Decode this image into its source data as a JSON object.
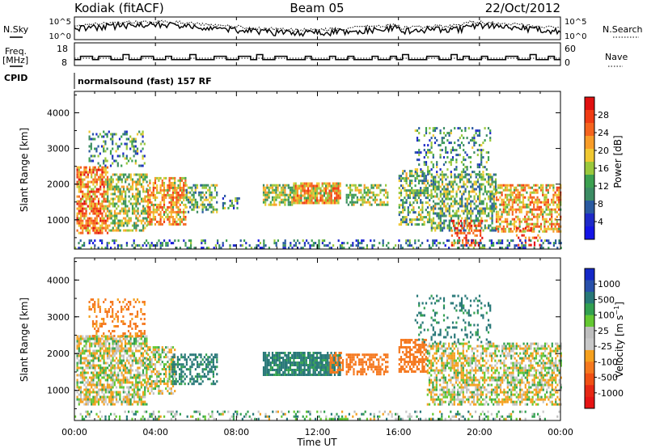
{
  "header": {
    "station": "Kodiak (fitACF)",
    "beam": "Beam 05",
    "date": "22/Oct/2012",
    "cpid_label": "CPID",
    "cpid_value": "normalsound (fast) 157 RF"
  },
  "noise_panel": {
    "left_label": "N.Sky",
    "right_label": "N.Search",
    "left_ticks": [
      "10^5",
      "10^0"
    ],
    "right_ticks": [
      "10^5",
      "10^0"
    ]
  },
  "freq_panel": {
    "left_label": "Freq.",
    "left_unit": "[MHz]",
    "right_label": "Nave",
    "left_ticks": [
      18,
      8
    ],
    "right_ticks": [
      60,
      0
    ],
    "freq_steps": [
      10,
      12,
      12,
      10,
      12,
      12,
      10,
      10,
      13,
      10,
      10,
      12,
      12,
      10,
      10,
      12,
      10,
      10,
      10,
      13,
      10,
      10,
      10,
      12,
      12,
      10,
      10,
      12,
      12,
      10,
      13,
      10,
      10,
      12,
      12,
      10,
      10,
      10,
      12,
      10,
      10,
      10,
      12,
      10,
      10,
      12,
      10,
      10,
      10,
      12,
      10,
      10,
      12,
      10,
      13,
      10,
      10,
      10,
      12,
      12,
      10,
      10,
      13,
      10,
      12,
      10,
      10,
      12,
      10,
      10,
      10,
      12,
      12,
      10,
      10,
      13,
      10,
      10,
      12,
      10
    ]
  },
  "chart_data": [
    {
      "type": "heatmap",
      "title": "Power",
      "xlabel": "Time UT",
      "ylabel": "Slant Range [km]",
      "colorbar_label": "Power [dB]",
      "x_ticks": [
        "00:00",
        "04:00",
        "08:00",
        "12:00",
        "16:00",
        "20:00",
        "00:00"
      ],
      "x_range_hours": [
        0,
        24
      ],
      "y_range_km": [
        180,
        4600
      ],
      "y_ticks": [
        1000,
        2000,
        3000,
        4000
      ],
      "colorbar_ticks": [
        "28",
        "24",
        "20",
        "16",
        "12",
        "8",
        "4"
      ],
      "colorbar_colors": [
        "#e01010",
        "#f03c14",
        "#f5641e",
        "#f89c28",
        "#f0c832",
        "#9ac83c",
        "#3ca050",
        "#3c8c64",
        "#2a5aa0",
        "#1e2ac8",
        "#1414e6"
      ],
      "regions": [
        {
          "t0": 0.1,
          "t1": 1.6,
          "r0": 600,
          "r1": 2500,
          "val": 22,
          "density": 0.72
        },
        {
          "t0": 1.6,
          "t1": 3.6,
          "r0": 700,
          "r1": 2300,
          "val": 16,
          "density": 0.6
        },
        {
          "t0": 0.7,
          "t1": 3.5,
          "r0": 2500,
          "r1": 3500,
          "val": 12,
          "density": 0.3
        },
        {
          "t0": 3.6,
          "t1": 5.5,
          "r0": 900,
          "r1": 2200,
          "val": 20,
          "density": 0.65
        },
        {
          "t0": 5.5,
          "t1": 7.0,
          "r0": 1200,
          "r1": 2000,
          "val": 14,
          "density": 0.55
        },
        {
          "t0": 7.3,
          "t1": 8.2,
          "r0": 1350,
          "r1": 1700,
          "val": 12,
          "density": 0.3
        },
        {
          "t0": 9.3,
          "t1": 10.8,
          "r0": 1450,
          "r1": 2000,
          "val": 16,
          "density": 0.75
        },
        {
          "t0": 10.8,
          "t1": 13.1,
          "r0": 1450,
          "r1": 2050,
          "val": 20,
          "density": 0.85
        },
        {
          "t0": 13.4,
          "t1": 15.5,
          "r0": 1450,
          "r1": 2000,
          "val": 16,
          "density": 0.55
        },
        {
          "t0": 16.0,
          "t1": 17.6,
          "r0": 900,
          "r1": 2400,
          "val": 14,
          "density": 0.55
        },
        {
          "t0": 17.6,
          "t1": 20.8,
          "r0": 700,
          "r1": 2300,
          "val": 14,
          "density": 0.55
        },
        {
          "t0": 18.6,
          "t1": 20.1,
          "r0": 300,
          "r1": 1000,
          "val": 26,
          "density": 0.4
        },
        {
          "t0": 20.8,
          "t1": 24.0,
          "r0": 700,
          "r1": 2000,
          "val": 20,
          "density": 0.6
        },
        {
          "t0": 21.8,
          "t1": 23.0,
          "r0": 300,
          "r1": 800,
          "val": 26,
          "density": 0.3
        },
        {
          "t0": 16.8,
          "t1": 20.5,
          "r0": 2300,
          "r1": 3600,
          "val": 12,
          "density": 0.25
        },
        {
          "t0": 0.0,
          "t1": 24.0,
          "r0": 200,
          "r1": 450,
          "val": 10,
          "density": 0.3
        }
      ]
    },
    {
      "type": "heatmap",
      "title": "Velocity",
      "xlabel": "Time UT",
      "ylabel": "Slant Range [km]",
      "colorbar_label": "Velocity [m s^-1]",
      "x_ticks": [
        "00:00",
        "04:00",
        "08:00",
        "12:00",
        "16:00",
        "20:00",
        "00:00"
      ],
      "x_range_hours": [
        0,
        24
      ],
      "y_range_km": [
        180,
        4600
      ],
      "y_ticks": [
        1000,
        2000,
        3000,
        4000
      ],
      "colorbar_ticks": [
        "1000",
        "500",
        "100",
        "25",
        "-25",
        "-100",
        "-500",
        "-1000"
      ],
      "colorbar_colors": [
        "#1428c8",
        "#2850aa",
        "#287878",
        "#32a050",
        "#64c832",
        "#bebebe",
        "#c8c8c8",
        "#f5a01e",
        "#f5781e",
        "#f05014",
        "#e62814",
        "#e61414"
      ],
      "regions": [
        {
          "t0": 0.1,
          "t1": 3.6,
          "r0": 600,
          "r1": 2500,
          "val": 0,
          "density": 0.7
        },
        {
          "t0": 0.7,
          "t1": 3.5,
          "r0": 2500,
          "r1": 3500,
          "val": -150,
          "density": 0.3
        },
        {
          "t0": 3.6,
          "t1": 5.0,
          "r0": 900,
          "r1": 2200,
          "val": 0,
          "density": 0.6
        },
        {
          "t0": 4.8,
          "t1": 7.0,
          "r0": 1200,
          "r1": 2000,
          "val": 150,
          "density": 0.5
        },
        {
          "t0": 9.3,
          "t1": 13.1,
          "r0": 1450,
          "r1": 2050,
          "val": 150,
          "density": 0.85
        },
        {
          "t0": 12.6,
          "t1": 13.3,
          "r0": 1500,
          "r1": 2050,
          "val": -200,
          "density": 0.6
        },
        {
          "t0": 13.4,
          "t1": 15.5,
          "r0": 1450,
          "r1": 2000,
          "val": -200,
          "density": 0.55
        },
        {
          "t0": 16.0,
          "t1": 17.4,
          "r0": 1500,
          "r1": 2400,
          "val": -200,
          "density": 0.6
        },
        {
          "t0": 17.4,
          "t1": 24.0,
          "r0": 600,
          "r1": 2300,
          "val": 0,
          "density": 0.6
        },
        {
          "t0": 16.8,
          "t1": 20.5,
          "r0": 2300,
          "r1": 3600,
          "val": 150,
          "density": 0.2
        },
        {
          "t0": 0.0,
          "t1": 24.0,
          "r0": 200,
          "r1": 450,
          "val": 50,
          "density": 0.25
        }
      ]
    }
  ]
}
